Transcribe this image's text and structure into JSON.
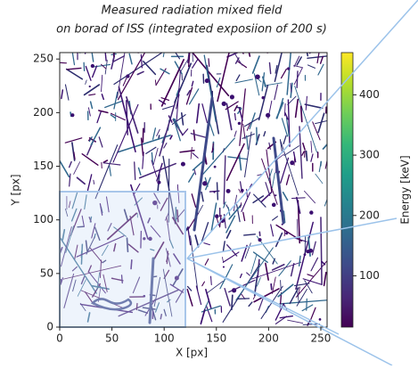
{
  "chart_data": {
    "type": "image",
    "title": [
      "Measured radiation mixed field",
      "on borad of ISS (integrated exposiion of 200 s)"
    ],
    "xlabel": "X [px]",
    "ylabel": "Y [px]",
    "xlim": [
      0,
      256
    ],
    "ylim": [
      0,
      256
    ],
    "xticks": [
      0,
      50,
      100,
      150,
      200,
      250
    ],
    "yticks": [
      0,
      50,
      100,
      150,
      200,
      250
    ],
    "colorbar": {
      "label": "Energy [keV]",
      "lim": [
        15,
        470
      ],
      "ticks": [
        100,
        200,
        300,
        400
      ],
      "colormap": "viridis"
    }
  }
}
